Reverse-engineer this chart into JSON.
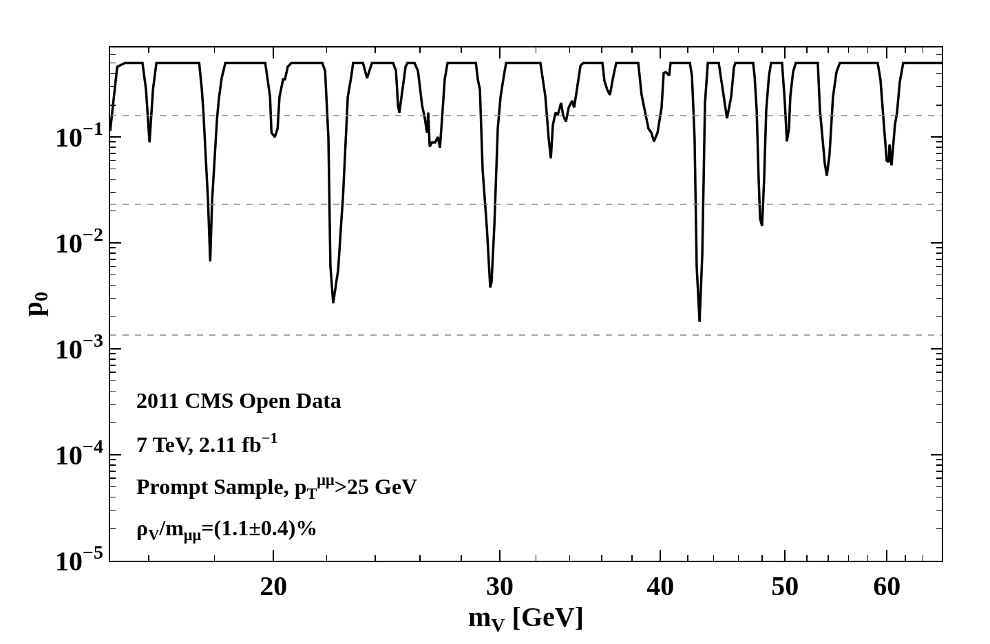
{
  "chart_data": {
    "type": "line",
    "xlabel": "m$_{V}$ [GeV]",
    "ylabel": "p$_{0}$",
    "log": "xy",
    "xlim": [
      14.93,
      66.2
    ],
    "ylim": [
      1e-05,
      0.7
    ],
    "xticks": [
      20,
      30,
      40,
      50,
      60,
      {
        "value": 16,
        "label": null
      },
      {
        "value": 18,
        "label": null
      },
      {
        "value": 22,
        "label": null
      },
      {
        "value": 24,
        "label": null
      },
      {
        "value": 26,
        "label": null
      },
      {
        "value": 28,
        "label": null
      },
      {
        "value": 32,
        "label": null
      },
      {
        "value": 34,
        "label": null
      },
      {
        "value": 36,
        "label": null
      },
      {
        "value": 38,
        "label": null
      },
      {
        "value": 42,
        "label": null
      },
      {
        "value": 44,
        "label": null
      },
      {
        "value": 46,
        "label": null
      },
      {
        "value": 48,
        "label": null
      },
      {
        "value": 52,
        "label": null
      },
      {
        "value": 54,
        "label": null
      },
      {
        "value": 56,
        "label": null
      },
      {
        "value": 58,
        "label": null
      },
      {
        "value": 62,
        "label": null
      },
      {
        "value": 64,
        "label": null
      }
    ],
    "yticks": [
      {
        "value": 1e-05,
        "label": "10$^{−5}$"
      },
      {
        "value": 0.0001,
        "label": "10$^{−4}$"
      },
      {
        "value": 0.001,
        "label": "10$^{−3}$"
      },
      {
        "value": 0.01,
        "label": "10$^{−2}$"
      },
      {
        "value": 0.1,
        "label": "10$^{−1}$"
      },
      {
        "value": 2e-05,
        "label": null
      },
      {
        "value": 3e-05,
        "label": null
      },
      {
        "value": 4e-05,
        "label": null
      },
      {
        "value": 5e-05,
        "label": null
      },
      {
        "value": 6e-05,
        "label": null
      },
      {
        "value": 7e-05,
        "label": null
      },
      {
        "value": 8e-05,
        "label": null
      },
      {
        "value": 9e-05,
        "label": null
      },
      {
        "value": 0.0002,
        "label": null
      },
      {
        "value": 0.0003,
        "label": null
      },
      {
        "value": 0.0004,
        "label": null
      },
      {
        "value": 0.0005,
        "label": null
      },
      {
        "value": 0.0006,
        "label": null
      },
      {
        "value": 0.0007,
        "label": null
      },
      {
        "value": 0.0008,
        "label": null
      },
      {
        "value": 0.0009,
        "label": null
      },
      {
        "value": 0.002,
        "label": null
      },
      {
        "value": 0.003,
        "label": null
      },
      {
        "value": 0.004,
        "label": null
      },
      {
        "value": 0.005,
        "label": null
      },
      {
        "value": 0.006,
        "label": null
      },
      {
        "value": 0.007,
        "label": null
      },
      {
        "value": 0.008,
        "label": null
      },
      {
        "value": 0.009,
        "label": null
      },
      {
        "value": 0.02,
        "label": null
      },
      {
        "value": 0.03,
        "label": null
      },
      {
        "value": 0.04,
        "label": null
      },
      {
        "value": 0.05,
        "label": null
      },
      {
        "value": 0.06,
        "label": null
      },
      {
        "value": 0.07,
        "label": null
      },
      {
        "value": 0.08,
        "label": null
      },
      {
        "value": 0.09,
        "label": null
      },
      {
        "value": 0.2,
        "label": null
      },
      {
        "value": 0.3,
        "label": null
      },
      {
        "value": 0.4,
        "label": null
      },
      {
        "value": 0.5,
        "label": null
      },
      {
        "value": 0.6,
        "label": null
      }
    ],
    "ref_lines": [
      {
        "axis": "y",
        "value": 0.159,
        "color": "#888888",
        "line_style": "dashed"
      },
      {
        "axis": "y",
        "value": 0.0231,
        "color": "#888888",
        "line_style": "dashed"
      },
      {
        "axis": "y",
        "value": 0.00135,
        "color": "#888888",
        "line_style": "dashed"
      }
    ],
    "annotations": [
      "2011 CMS Open Data",
      "7 TeV, 2.11 fb$^{−1}$",
      "Prompt Sample, p$_{T}$$^{μμ}$>25 GeV",
      "ρ$_{V}$/m$_{μμ}$=(1.1±0.4)%"
    ],
    "series": [
      {
        "color": "#000000",
        "x": [
          14.93,
          15.12,
          15.33,
          15.82,
          15.92,
          16.02,
          16.12,
          16.22,
          17.51,
          17.59,
          17.64,
          17.79,
          17.86,
          17.92,
          18.08,
          18.14,
          18.23,
          18.35,
          19.71,
          19.88,
          19.93,
          20.05,
          20.15,
          20.22,
          20.35,
          20.42,
          20.52,
          20.65,
          21.83,
          21.94,
          22.07,
          22.15,
          22.26,
          22.46,
          22.6,
          22.65,
          22.85,
          22.99,
          23.07,
          23.48,
          23.65,
          23.86,
          24.78,
          24.91,
          25.0,
          25.06,
          25.22,
          25.34,
          25.43,
          25.75,
          25.91,
          26.1,
          26.23,
          26.33,
          26.39,
          26.46,
          26.56,
          26.72,
          26.85,
          26.95,
          27.08,
          27.18,
          27.32,
          28.74,
          28.84,
          28.95,
          29.09,
          29.31,
          29.49,
          29.56,
          29.71,
          29.89,
          30.04,
          30.22,
          30.34,
          32.26,
          32.55,
          32.74,
          32.87,
          32.99,
          33.15,
          33.27,
          33.48,
          33.6,
          33.77,
          33.94,
          34.15,
          34.27,
          34.44,
          34.66,
          34.83,
          36.05,
          36.18,
          36.36,
          36.54,
          36.72,
          36.95,
          38.44,
          38.67,
          38.96,
          39.15,
          39.35,
          39.54,
          39.79,
          40.08,
          40.23,
          40.38,
          40.63,
          40.73,
          42.16,
          42.32,
          42.52,
          42.68,
          42.9,
          43.11,
          43.32,
          43.54,
          44.4,
          44.68,
          45.06,
          45.4,
          45.62,
          45.74,
          47.22,
          47.34,
          47.52,
          47.69,
          47.81,
          47.98,
          48.16,
          48.34,
          48.58,
          48.76,
          49.73,
          49.98,
          50.16,
          50.35,
          50.47,
          50.72,
          50.97,
          53.02,
          53.22,
          53.68,
          53.88,
          54.14,
          54.48,
          54.82,
          55.15,
          59.02,
          59.31,
          59.68,
          59.98,
          60.2,
          60.28,
          60.5,
          60.87,
          61.1,
          61.4,
          61.78,
          66.2
        ],
        "values": [
          0.114,
          0.46,
          0.5,
          0.5,
          0.28,
          0.089,
          0.28,
          0.5,
          0.5,
          0.29,
          0.18,
          0.025,
          0.0067,
          0.025,
          0.15,
          0.23,
          0.36,
          0.5,
          0.5,
          0.24,
          0.11,
          0.1,
          0.12,
          0.24,
          0.35,
          0.35,
          0.46,
          0.5,
          0.5,
          0.42,
          0.098,
          0.006,
          0.0027,
          0.0056,
          0.018,
          0.026,
          0.24,
          0.37,
          0.5,
          0.5,
          0.36,
          0.5,
          0.5,
          0.42,
          0.2,
          0.17,
          0.3,
          0.46,
          0.5,
          0.5,
          0.42,
          0.2,
          0.15,
          0.11,
          0.17,
          0.081,
          0.089,
          0.089,
          0.1,
          0.079,
          0.18,
          0.35,
          0.5,
          0.5,
          0.35,
          0.28,
          0.049,
          0.014,
          0.0038,
          0.0043,
          0.015,
          0.12,
          0.24,
          0.38,
          0.5,
          0.5,
          0.24,
          0.098,
          0.063,
          0.13,
          0.17,
          0.16,
          0.21,
          0.16,
          0.14,
          0.19,
          0.22,
          0.19,
          0.28,
          0.47,
          0.5,
          0.5,
          0.34,
          0.28,
          0.25,
          0.35,
          0.5,
          0.5,
          0.25,
          0.16,
          0.12,
          0.11,
          0.091,
          0.11,
          0.19,
          0.4,
          0.41,
          0.38,
          0.5,
          0.5,
          0.38,
          0.098,
          0.006,
          0.0018,
          0.0078,
          0.21,
          0.5,
          0.5,
          0.3,
          0.15,
          0.24,
          0.45,
          0.5,
          0.5,
          0.38,
          0.18,
          0.04,
          0.017,
          0.0145,
          0.04,
          0.18,
          0.38,
          0.5,
          0.5,
          0.21,
          0.091,
          0.12,
          0.24,
          0.41,
          0.5,
          0.5,
          0.18,
          0.057,
          0.043,
          0.068,
          0.24,
          0.41,
          0.5,
          0.5,
          0.35,
          0.13,
          0.06,
          0.058,
          0.085,
          0.054,
          0.13,
          0.17,
          0.33,
          0.5,
          0.5
        ]
      }
    ]
  }
}
